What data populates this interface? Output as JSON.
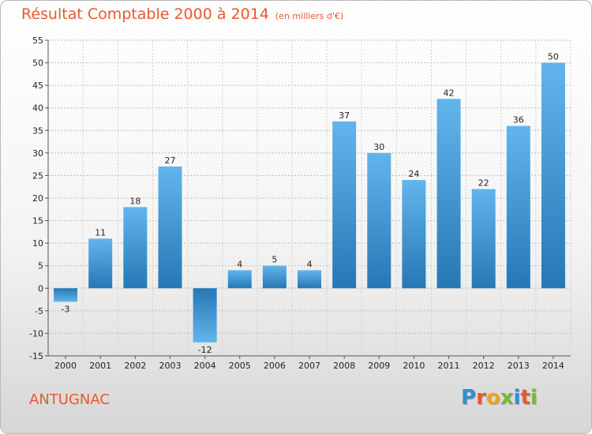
{
  "title": "Résultat Comptable 2000 à 2014",
  "unit": "(en milliers d'€)",
  "town": "ANTUGNAC",
  "logo": {
    "letters": [
      "P",
      "r",
      "o",
      "x",
      "i",
      "t",
      "i"
    ],
    "colors": [
      "#2f8fd6",
      "#e8582e",
      "#f0a020",
      "#7ab834",
      "#2f8fd6",
      "#e8582e",
      "#7ab834"
    ]
  },
  "colors": {
    "accent": "#e8582e",
    "bar_light": "#62b5ec",
    "bar_dark": "#2578b4"
  },
  "chart_data": {
    "type": "bar",
    "title": "Résultat Comptable 2000 à 2014",
    "categories": [
      "2000",
      "2001",
      "2002",
      "2003",
      "2004",
      "2005",
      "2006",
      "2007",
      "2008",
      "2009",
      "2010",
      "2011",
      "2012",
      "2013",
      "2014"
    ],
    "values": [
      -3,
      11,
      18,
      27,
      -12,
      4,
      5,
      4,
      37,
      30,
      24,
      42,
      22,
      36,
      50
    ],
    "ylim": [
      -15,
      55
    ],
    "yticks": [
      -15,
      -10,
      -5,
      0,
      5,
      10,
      15,
      20,
      25,
      30,
      35,
      40,
      45,
      50,
      55
    ],
    "ytick_labels": [
      "-15",
      "-10",
      "-5",
      "0",
      "5",
      "10",
      "15",
      "20",
      "25",
      "30",
      "35",
      "40",
      "45",
      "50",
      "55"
    ],
    "grid": "horizontal dashed",
    "legend": "none"
  }
}
